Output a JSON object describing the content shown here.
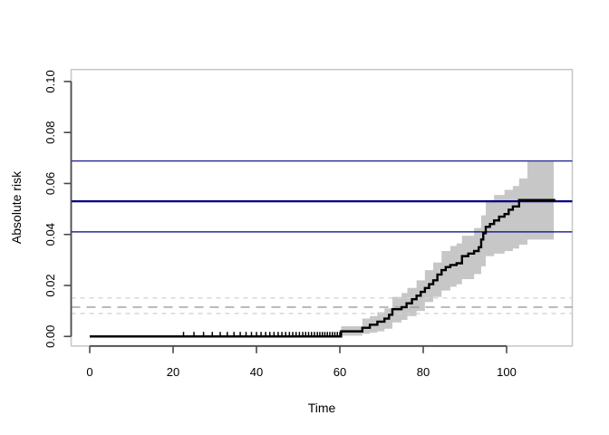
{
  "figure": {
    "background": "#ffffff",
    "title": ""
  },
  "chart_data": {
    "type": "line",
    "subtype": "step-cumulative-incidence-with-confidence-band",
    "title": "",
    "xlabel": "Time",
    "ylabel": "Absolute risk",
    "xlim": [
      -4.46,
      115.76
    ],
    "ylim": [
      -0.00375,
      0.1047
    ],
    "xticks": {
      "values": [
        0,
        20,
        40,
        60,
        80,
        100
      ],
      "labels": [
        "0",
        "20",
        "40",
        "60",
        "80",
        "100"
      ]
    },
    "yticks": {
      "values": [
        0.0,
        0.02,
        0.04,
        0.06,
        0.08,
        0.1
      ],
      "labels": [
        "0.00",
        "0.02",
        "0.04",
        "0.06",
        "0.08",
        "0.10"
      ]
    },
    "grid": false,
    "legend": null,
    "colors": {
      "box": "#c9c9c9",
      "axis": "#4a4a4a",
      "curve": "#000000",
      "band": "#c7c7c7",
      "navy": "#000080",
      "dash_light": "#d4d4d4",
      "dash_mid": "#9c9c9c"
    },
    "series": [
      {
        "name": "absolute-risk-step-curve",
        "step": true,
        "color": "#000000",
        "line_width": 2.4,
        "points": [
          [
            0,
            0
          ],
          [
            60.3,
            0.002
          ],
          [
            65.4,
            0.0034
          ],
          [
            67.2,
            0.0046
          ],
          [
            69,
            0.0058
          ],
          [
            70.7,
            0.007
          ],
          [
            71.8,
            0.0085
          ],
          [
            72.6,
            0.0107
          ],
          [
            74.8,
            0.0115
          ],
          [
            76,
            0.013
          ],
          [
            77.3,
            0.0146
          ],
          [
            78.4,
            0.016
          ],
          [
            79.4,
            0.0175
          ],
          [
            80.4,
            0.019
          ],
          [
            81.4,
            0.0205
          ],
          [
            82.4,
            0.022
          ],
          [
            83.4,
            0.0243
          ],
          [
            84.4,
            0.026
          ],
          [
            85.4,
            0.0272
          ],
          [
            86.5,
            0.028
          ],
          [
            88,
            0.0287
          ],
          [
            89.3,
            0.0315
          ],
          [
            90.8,
            0.0325
          ],
          [
            92.2,
            0.0335
          ],
          [
            93.3,
            0.035
          ],
          [
            93.9,
            0.038
          ],
          [
            94.4,
            0.0405
          ],
          [
            95,
            0.043
          ],
          [
            96,
            0.0441
          ],
          [
            97,
            0.0455
          ],
          [
            98.2,
            0.047
          ],
          [
            99.5,
            0.048
          ],
          [
            100.5,
            0.0497
          ],
          [
            101.5,
            0.051
          ],
          [
            103,
            0.0535
          ],
          [
            111.7,
            0.0535
          ]
        ]
      }
    ],
    "confidence_band": {
      "name": "95-percent-confidence-band",
      "color": "#c7c7c7",
      "t_end": 111.3,
      "steps": [
        [
          60.3,
          0.0003,
          0.004
        ],
        [
          65.4,
          0.001,
          0.007
        ],
        [
          67.2,
          0.0015,
          0.008
        ],
        [
          69,
          0.002,
          0.0095
        ],
        [
          70.7,
          0.003,
          0.011
        ],
        [
          72.6,
          0.0055,
          0.0155
        ],
        [
          74.8,
          0.0065,
          0.017
        ],
        [
          76.2,
          0.008,
          0.019
        ],
        [
          78.4,
          0.01,
          0.022
        ],
        [
          80.4,
          0.0135,
          0.026
        ],
        [
          82.4,
          0.0155,
          0.029
        ],
        [
          84.4,
          0.018,
          0.0335
        ],
        [
          86.5,
          0.0195,
          0.0355
        ],
        [
          88,
          0.0205,
          0.0365
        ],
        [
          89.3,
          0.0225,
          0.0395
        ],
        [
          92.2,
          0.0245,
          0.0425
        ],
        [
          93.9,
          0.0275,
          0.0475
        ],
        [
          95,
          0.0315,
          0.0535
        ],
        [
          97,
          0.0325,
          0.0555
        ],
        [
          99.5,
          0.0335,
          0.0575
        ],
        [
          101.5,
          0.0345,
          0.059
        ],
        [
          103,
          0.036,
          0.062
        ],
        [
          105,
          0.038,
          0.0685
        ]
      ]
    },
    "reference_lines": [
      {
        "name": "navy-upper-line",
        "value": 0.0688,
        "color": "#000080",
        "width": 1.2,
        "dash": ""
      },
      {
        "name": "navy-estimate-line",
        "value": 0.053,
        "color": "#000080",
        "width": 2.3,
        "dash": ""
      },
      {
        "name": "navy-lower-line",
        "value": 0.041,
        "color": "#000080",
        "width": 1.2,
        "dash": ""
      },
      {
        "name": "gray-dashed-upper-line",
        "value": 0.0151,
        "color": "#d4d4d4",
        "width": 1.4,
        "dash": "5 5"
      },
      {
        "name": "gray-dashed-estimate-line",
        "value": 0.0115,
        "color": "#9c9c9c",
        "width": 1.4,
        "dash": "10 7"
      },
      {
        "name": "gray-dashed-lower-line",
        "value": 0.009,
        "color": "#d4d4d4",
        "width": 1.4,
        "dash": "5 5"
      }
    ],
    "censor_marks": {
      "color": "#000000",
      "at_value": 0,
      "times": [
        22.5,
        25,
        27.3,
        29.4,
        31.3,
        33,
        34.6,
        36.1,
        37.5,
        38.8,
        40,
        41.1,
        42.2,
        43.2,
        44.2,
        45.2,
        46.1,
        47,
        47.9,
        48.7,
        49.5,
        50.3,
        51.1,
        51.8,
        52.5,
        53.2,
        53.9,
        54.6,
        55.2,
        55.8,
        56.4,
        57,
        57.6,
        58.2,
        58.8,
        59.4,
        60
      ]
    }
  }
}
